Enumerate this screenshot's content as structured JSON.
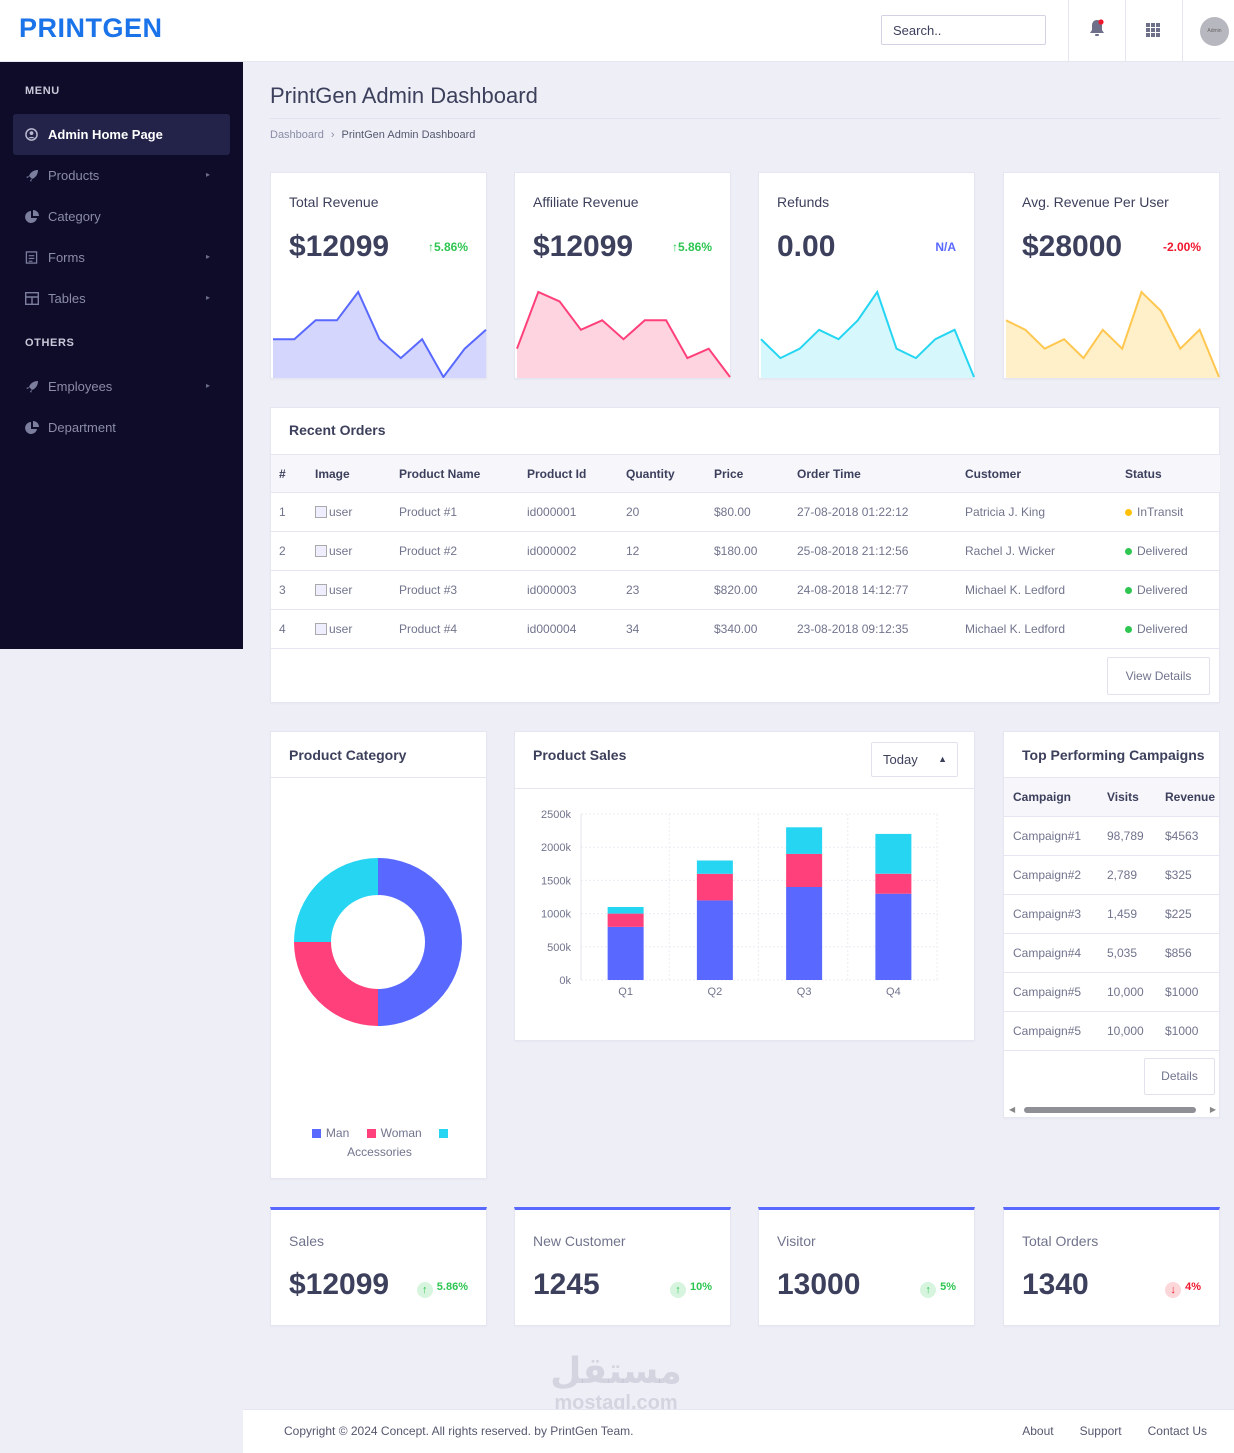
{
  "brand": "PRINTGEN",
  "header": {
    "search_placeholder": "Search..",
    "avatar_text": "Admin"
  },
  "sidebar": {
    "sections": [
      {
        "heading": "MENU",
        "items": [
          {
            "label": "Admin Home Page",
            "icon": "user-circle-icon",
            "active": true
          },
          {
            "label": "Products",
            "icon": "rocket-icon",
            "has_submenu": true
          },
          {
            "label": "Category",
            "icon": "pie-chart-icon"
          },
          {
            "label": "Forms",
            "icon": "form-icon",
            "has_submenu": true
          },
          {
            "label": "Tables",
            "icon": "table-icon",
            "has_submenu": true
          }
        ]
      },
      {
        "heading": "OTHERS",
        "items": [
          {
            "label": "Employees",
            "icon": "rocket-icon",
            "has_submenu": true
          },
          {
            "label": "Department",
            "icon": "pie-chart-icon"
          }
        ]
      }
    ]
  },
  "page": {
    "title": "PrintGen Admin Dashboard",
    "breadcrumb": [
      "Dashboard",
      "PrintGen Admin Dashboard"
    ]
  },
  "kpis": [
    {
      "label": "Total Revenue",
      "value": "$12099",
      "change": "5.86%",
      "trend": "up",
      "color": "#5969ff",
      "fill": "#d5d6fe",
      "spark": [
        4,
        4,
        6,
        6,
        9,
        4,
        2,
        4,
        0,
        3,
        5
      ]
    },
    {
      "label": "Affiliate Revenue",
      "value": "$12099",
      "change": "5.86%",
      "trend": "up",
      "color": "#ff407b",
      "fill": "#fdd4e0",
      "spark": [
        3,
        9,
        8,
        5,
        6,
        4,
        6,
        6,
        2,
        3,
        0
      ]
    },
    {
      "label": "Refunds",
      "value": "0.00",
      "change": "N/A",
      "trend": "none",
      "color": "#25d5f2",
      "fill": "#d6f8fd",
      "spark": [
        4,
        2,
        3,
        5,
        4,
        6,
        9,
        3,
        2,
        4,
        5,
        0
      ]
    },
    {
      "label": "Avg. Revenue Per User",
      "value": "$28000",
      "change": "-2.00%",
      "trend": "down",
      "color": "#ffc750",
      "fill": "#fff0c9",
      "spark": [
        6,
        5,
        3,
        4,
        2,
        5,
        3,
        9,
        7,
        3,
        5,
        0
      ]
    }
  ],
  "recent_orders": {
    "title": "Recent Orders",
    "columns": [
      "#",
      "Image",
      "Product Name",
      "Product Id",
      "Quantity",
      "Price",
      "Order Time",
      "Customer",
      "Status"
    ],
    "rows": [
      {
        "n": "1",
        "image_alt": "user",
        "product": "Product #1",
        "id": "id000001",
        "qty": "20",
        "price": "$80.00",
        "time": "27-08-2018 01:22:12",
        "customer": "Patricia J. King",
        "status": "InTransit",
        "status_color": "#ffc108"
      },
      {
        "n": "2",
        "image_alt": "user",
        "product": "Product #2",
        "id": "id000002",
        "qty": "12",
        "price": "$180.00",
        "time": "25-08-2018 21:12:56",
        "customer": "Rachel J. Wicker",
        "status": "Delivered",
        "status_color": "#2ec551"
      },
      {
        "n": "3",
        "image_alt": "user",
        "product": "Product #3",
        "id": "id000003",
        "qty": "23",
        "price": "$820.00",
        "time": "24-08-2018 14:12:77",
        "customer": "Michael K. Ledford",
        "status": "Delivered",
        "status_color": "#2ec551"
      },
      {
        "n": "4",
        "image_alt": "user",
        "product": "Product #4",
        "id": "id000004",
        "qty": "34",
        "price": "$340.00",
        "time": "23-08-2018 09:12:35",
        "customer": "Michael K. Ledford",
        "status": "Delivered",
        "status_color": "#2ec551"
      }
    ],
    "button": "View Details"
  },
  "product_category": {
    "title": "Product Category",
    "legend": [
      "Man",
      "Woman",
      "Accessories"
    ]
  },
  "product_sales": {
    "title": "Product Sales",
    "select_value": "Today"
  },
  "campaigns": {
    "title": "Top Performing Campaigns",
    "columns": [
      "Campaign",
      "Visits",
      "Revenue"
    ],
    "rows": [
      [
        "Campaign#1",
        "98,789",
        "$4563"
      ],
      [
        "Campaign#2",
        "2,789",
        "$325"
      ],
      [
        "Campaign#3",
        "1,459",
        "$225"
      ],
      [
        "Campaign#4",
        "5,035",
        "$856"
      ],
      [
        "Campaign#5",
        "10,000",
        "$1000"
      ],
      [
        "Campaign#5",
        "10,000",
        "$1000"
      ]
    ],
    "button": "Details"
  },
  "stats": [
    {
      "label": "Sales",
      "value": "$12099",
      "change": "5.86%",
      "trend": "up"
    },
    {
      "label": "New Customer",
      "value": "1245",
      "change": "10%",
      "trend": "up"
    },
    {
      "label": "Visitor",
      "value": "13000",
      "change": "5%",
      "trend": "up"
    },
    {
      "label": "Total Orders",
      "value": "1340",
      "change": "4%",
      "trend": "down"
    }
  ],
  "footer": {
    "copyright": "Copyright © 2024 Concept. All rights reserved. by PrintGen Team.",
    "links": [
      "About",
      "Support",
      "Contact Us"
    ]
  },
  "watermark": {
    "arabic": "مستقل",
    "latin": "mostaql.com"
  },
  "chart_data": [
    {
      "type": "pie",
      "variant": "donut",
      "categories": [
        "Man",
        "Woman",
        "Accessories"
      ],
      "values": [
        50,
        25,
        25
      ],
      "colors": [
        "#5969ff",
        "#ff407b",
        "#25d5f2"
      ]
    },
    {
      "type": "bar",
      "stacked": true,
      "categories": [
        "Q1",
        "Q2",
        "Q3",
        "Q4"
      ],
      "series": [
        {
          "name": "Man",
          "values": [
            800,
            1200,
            1400,
            1300
          ],
          "color": "#5969ff"
        },
        {
          "name": "Woman",
          "values": [
            200,
            400,
            500,
            300
          ],
          "color": "#ff407b"
        },
        {
          "name": "Accessories",
          "values": [
            100,
            200,
            400,
            600
          ],
          "color": "#25d5f2"
        }
      ],
      "ylim": [
        0,
        2500
      ],
      "yticks": [
        "0k",
        "500k",
        "1000k",
        "1500k",
        "2000k",
        "2500k"
      ],
      "grid": true
    }
  ]
}
